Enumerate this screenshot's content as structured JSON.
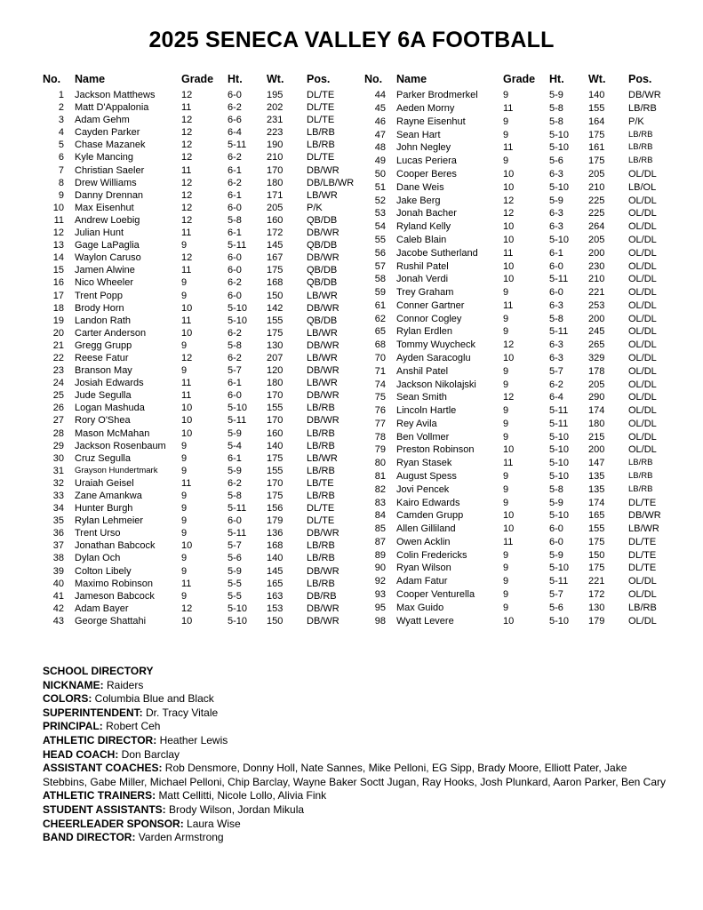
{
  "title": "2025 SENECA VALLEY 6A FOOTBALL",
  "table": {
    "headers": {
      "no": "No.",
      "name": "Name",
      "grade": "Grade",
      "ht": "Ht.",
      "wt": "Wt.",
      "pos": "Pos."
    },
    "left_rows": [
      {
        "no": "1",
        "name": "Jackson Matthews",
        "grade": "12",
        "ht": "6-0",
        "wt": "195",
        "pos": "DL/TE"
      },
      {
        "no": "2",
        "name": "Matt D'Appalonia",
        "grade": "11",
        "ht": "6-2",
        "wt": "202",
        "pos": "DL/TE"
      },
      {
        "no": "3",
        "name": "Adam Gehm",
        "grade": "12",
        "ht": "6-6",
        "wt": "231",
        "pos": "DL/TE"
      },
      {
        "no": "4",
        "name": "Cayden Parker",
        "grade": "12",
        "ht": "6-4",
        "wt": "223",
        "pos": "LB/RB"
      },
      {
        "no": "5",
        "name": "Chase Mazanek",
        "grade": "12",
        "ht": "5-11",
        "wt": "190",
        "pos": "LB/RB"
      },
      {
        "no": "6",
        "name": "Kyle Mancing",
        "grade": "12",
        "ht": "6-2",
        "wt": "210",
        "pos": "DL/TE"
      },
      {
        "no": "7",
        "name": "Christian Saeler",
        "grade": "11",
        "ht": "6-1",
        "wt": "170",
        "pos": "DB/WR"
      },
      {
        "no": "8",
        "name": "Drew Williams",
        "grade": "12",
        "ht": "6-2",
        "wt": "180",
        "pos": "DB/LB/WR"
      },
      {
        "no": "9",
        "name": "Danny Drennan",
        "grade": "12",
        "ht": "6-1",
        "wt": "171",
        "pos": "LB/WR"
      },
      {
        "no": "10",
        "name": "Max Eisenhut",
        "grade": "12",
        "ht": "6-0",
        "wt": "205",
        "pos": "P/K"
      },
      {
        "no": "11",
        "name": "Andrew Loebig",
        "grade": "12",
        "ht": "5-8",
        "wt": "160",
        "pos": "QB/DB"
      },
      {
        "no": "12",
        "name": "Julian Hunt",
        "grade": "11",
        "ht": "6-1",
        "wt": "172",
        "pos": "DB/WR"
      },
      {
        "no": "13",
        "name": "Gage LaPaglia",
        "grade": "9",
        "ht": "5-11",
        "wt": "145",
        "pos": "QB/DB"
      },
      {
        "no": "14",
        "name": "Waylon Caruso",
        "grade": "12",
        "ht": "6-0",
        "wt": "167",
        "pos": "DB/WR"
      },
      {
        "no": "15",
        "name": "Jamen Alwine",
        "grade": "11",
        "ht": "6-0",
        "wt": "175",
        "pos": "QB/DB"
      },
      {
        "no": "16",
        "name": "Nico Wheeler",
        "grade": "9",
        "ht": "6-2",
        "wt": "168",
        "pos": "QB/DB"
      },
      {
        "no": "17",
        "name": "Trent Popp",
        "grade": "9",
        "ht": "6-0",
        "wt": "150",
        "pos": "LB/WR"
      },
      {
        "no": "18",
        "name": "Brody Horn",
        "grade": "10",
        "ht": "5-10",
        "wt": "142",
        "pos": "DB/WR"
      },
      {
        "no": "19",
        "name": "Landon Rath",
        "grade": "11",
        "ht": "5-10",
        "wt": "155",
        "pos": "QB/DB"
      },
      {
        "no": "20",
        "name": "Carter Anderson",
        "grade": "10",
        "ht": "6-2",
        "wt": "175",
        "pos": "LB/WR"
      },
      {
        "no": "21",
        "name": "Gregg Grupp",
        "grade": "9",
        "ht": "5-8",
        "wt": "130",
        "pos": "DB/WR"
      },
      {
        "no": "22",
        "name": "Reese Fatur",
        "grade": "12",
        "ht": "6-2",
        "wt": "207",
        "pos": "LB/WR"
      },
      {
        "no": "23",
        "name": "Branson May",
        "grade": "9",
        "ht": "5-7",
        "wt": "120",
        "pos": "DB/WR"
      },
      {
        "no": "24",
        "name": "Josiah Edwards",
        "grade": "11",
        "ht": "6-1",
        "wt": "180",
        "pos": "LB/WR"
      },
      {
        "no": "25",
        "name": "Jude Segulla",
        "grade": "11",
        "ht": "6-0",
        "wt": "170",
        "pos": "DB/WR"
      },
      {
        "no": "26",
        "name": "Logan Mashuda",
        "grade": "10",
        "ht": "5-10",
        "wt": "155",
        "pos": "LB/RB"
      },
      {
        "no": "27",
        "name": "Rory O'Shea",
        "grade": "10",
        "ht": "5-11",
        "wt": "170",
        "pos": "DB/WR"
      },
      {
        "no": "28",
        "name": "Mason McMahan",
        "grade": "10",
        "ht": "5-9",
        "wt": "160",
        "pos": "LB/RB"
      },
      {
        "no": "29",
        "name": "Jackson Rosenbaum",
        "grade": "9",
        "ht": "5-4",
        "wt": "140",
        "pos": "LB/RB"
      },
      {
        "no": "30",
        "name": "Cruz Segulla",
        "grade": "9",
        "ht": "6-1",
        "wt": "175",
        "pos": "LB/WR"
      },
      {
        "no": "31",
        "name": "Grayson Hundertmark",
        "grade": "9",
        "ht": "5-9",
        "wt": "155",
        "pos": "LB/RB",
        "name_small": true
      },
      {
        "no": "32",
        "name": "Uraiah Geisel",
        "grade": "11",
        "ht": "6-2",
        "wt": "170",
        "pos": "LB/TE"
      },
      {
        "no": "33",
        "name": "Zane Amankwa",
        "grade": "9",
        "ht": "5-8",
        "wt": "175",
        "pos": "LB/RB"
      },
      {
        "no": "34",
        "name": "Hunter Burgh",
        "grade": "9",
        "ht": "5-11",
        "wt": "156",
        "pos": "DL/TE"
      },
      {
        "no": "35",
        "name": "Rylan Lehmeier",
        "grade": "9",
        "ht": "6-0",
        "wt": "179",
        "pos": "DL/TE"
      },
      {
        "no": "36",
        "name": "Trent Urso",
        "grade": "9",
        "ht": "5-11",
        "wt": "136",
        "pos": "DB/WR"
      },
      {
        "no": "37",
        "name": "Jonathan Babcock",
        "grade": "10",
        "ht": "5-7",
        "wt": "168",
        "pos": "LB/RB"
      },
      {
        "no": "38",
        "name": "Dylan Och",
        "grade": "9",
        "ht": "5-6",
        "wt": "140",
        "pos": "LB/RB"
      },
      {
        "no": "39",
        "name": "Colton Libely",
        "grade": "9",
        "ht": "5-9",
        "wt": "145",
        "pos": "DB/WR"
      },
      {
        "no": "40",
        "name": "Maximo Robinson",
        "grade": "11",
        "ht": "5-5",
        "wt": "165",
        "pos": "LB/RB"
      },
      {
        "no": "41",
        "name": "Jameson Babcock",
        "grade": "9",
        "ht": "5-5",
        "wt": "163",
        "pos": "DB/RB"
      },
      {
        "no": "42",
        "name": "Adam Bayer",
        "grade": "12",
        "ht": "5-10",
        "wt": "153",
        "pos": "DB/WR"
      },
      {
        "no": "43",
        "name": "George Shattahi",
        "grade": "10",
        "ht": "5-10",
        "wt": "150",
        "pos": "DB/WR"
      }
    ],
    "right_rows": [
      {
        "no": "44",
        "name": "Parker Brodmerkel",
        "grade": "9",
        "ht": "5-9",
        "wt": "140",
        "pos": "DB/WR"
      },
      {
        "no": "45",
        "name": "Aeden Morny",
        "grade": "11",
        "ht": "5-8",
        "wt": "155",
        "pos": "LB/RB"
      },
      {
        "no": "46",
        "name": "Rayne Eisenhut",
        "grade": "9",
        "ht": "5-8",
        "wt": "164",
        "pos": "P/K"
      },
      {
        "no": "47",
        "name": "Sean Hart",
        "grade": "9",
        "ht": "5-10",
        "wt": "175",
        "pos": "LB/RB",
        "pos_small": true
      },
      {
        "no": "48",
        "name": "John Negley",
        "grade": "11",
        "ht": "5-10",
        "wt": "161",
        "pos": "LB/RB",
        "pos_small": true
      },
      {
        "no": "49",
        "name": "Lucas Periera",
        "grade": "9",
        "ht": "5-6",
        "wt": "175",
        "pos": "LB/RB",
        "pos_small": true
      },
      {
        "no": "50",
        "name": "Cooper Beres",
        "grade": "10",
        "ht": "6-3",
        "wt": "205",
        "pos": "OL/DL"
      },
      {
        "no": "51",
        "name": "Dane Weis",
        "grade": "10",
        "ht": "5-10",
        "wt": "210",
        "pos": "LB/OL"
      },
      {
        "no": "52",
        "name": "Jake Berg",
        "grade": "12",
        "ht": "5-9",
        "wt": "225",
        "pos": "OL/DL"
      },
      {
        "no": "53",
        "name": "Jonah Bacher",
        "grade": "12",
        "ht": "6-3",
        "wt": "225",
        "pos": "OL/DL"
      },
      {
        "no": "54",
        "name": "Ryland Kelly",
        "grade": "10",
        "ht": "6-3",
        "wt": "264",
        "pos": "OL/DL"
      },
      {
        "no": "55",
        "name": "Caleb Blain",
        "grade": "10",
        "ht": "5-10",
        "wt": "205",
        "pos": "OL/DL"
      },
      {
        "no": "56",
        "name": "Jacobe Sutherland",
        "grade": "11",
        "ht": "6-1",
        "wt": "200",
        "pos": "OL/DL"
      },
      {
        "no": "57",
        "name": "Rushil Patel",
        "grade": "10",
        "ht": "6-0",
        "wt": "230",
        "pos": "OL/DL"
      },
      {
        "no": "58",
        "name": "Jonah Verdi",
        "grade": "10",
        "ht": "5-11",
        "wt": "210",
        "pos": "OL/DL"
      },
      {
        "no": "59",
        "name": "Trey Graham",
        "grade": "9",
        "ht": "6-0",
        "wt": "221",
        "pos": "OL/DL"
      },
      {
        "no": "61",
        "name": "Conner Gartner",
        "grade": "11",
        "ht": "6-3",
        "wt": "253",
        "pos": "OL/DL"
      },
      {
        "no": "62",
        "name": "Connor Cogley",
        "grade": "9",
        "ht": "5-8",
        "wt": "200",
        "pos": "OL/DL"
      },
      {
        "no": "65",
        "name": "Rylan Erdlen",
        "grade": "9",
        "ht": "5-11",
        "wt": "245",
        "pos": "OL/DL"
      },
      {
        "no": "68",
        "name": "Tommy Wuycheck",
        "grade": "12",
        "ht": "6-3",
        "wt": "265",
        "pos": "OL/DL"
      },
      {
        "no": "70",
        "name": "Ayden Saracoglu",
        "grade": "10",
        "ht": "6-3",
        "wt": "329",
        "pos": "OL/DL"
      },
      {
        "no": "71",
        "name": "Anshil Patel",
        "grade": "9",
        "ht": "5-7",
        "wt": "178",
        "pos": "OL/DL"
      },
      {
        "no": "74",
        "name": "Jackson Nikolajski",
        "grade": "9",
        "ht": "6-2",
        "wt": "205",
        "pos": "OL/DL"
      },
      {
        "no": "75",
        "name": "Sean Smith",
        "grade": "12",
        "ht": "6-4",
        "wt": "290",
        "pos": "OL/DL"
      },
      {
        "no": "76",
        "name": "Lincoln Hartle",
        "grade": "9",
        "ht": "5-11",
        "wt": "174",
        "pos": "OL/DL"
      },
      {
        "no": "77",
        "name": "Rey Avila",
        "grade": "9",
        "ht": "5-11",
        "wt": "180",
        "pos": "OL/DL"
      },
      {
        "no": "78",
        "name": "Ben Vollmer",
        "grade": "9",
        "ht": "5-10",
        "wt": "215",
        "pos": "OL/DL"
      },
      {
        "no": "79",
        "name": "Preston Robinson",
        "grade": "10",
        "ht": "5-10",
        "wt": "200",
        "pos": "OL/DL"
      },
      {
        "no": "80",
        "name": "Ryan Stasek",
        "grade": "11",
        "ht": "5-10",
        "wt": "147",
        "pos": "LB/RB",
        "pos_small": true
      },
      {
        "no": "81",
        "name": "August Spess",
        "grade": "9",
        "ht": "5-10",
        "wt": "135",
        "pos": "LB/RB",
        "pos_small": true
      },
      {
        "no": "82",
        "name": "Jovi Pencek",
        "grade": "9",
        "ht": "5-8",
        "wt": "135",
        "pos": "LB/RB",
        "pos_small": true
      },
      {
        "no": "83",
        "name": "Kairo Edwards",
        "grade": "9",
        "ht": "5-9",
        "wt": "174",
        "pos": "DL/TE"
      },
      {
        "no": "84",
        "name": "Camden Grupp",
        "grade": "10",
        "ht": "5-10",
        "wt": "165",
        "pos": "DB/WR"
      },
      {
        "no": "85",
        "name": "Allen Gilliland",
        "grade": "10",
        "ht": "6-0",
        "wt": "155",
        "pos": "LB/WR"
      },
      {
        "no": "87",
        "name": "Owen Acklin",
        "grade": "11",
        "ht": "6-0",
        "wt": "175",
        "pos": "DL/TE"
      },
      {
        "no": "89",
        "name": "Colin Fredericks",
        "grade": "9",
        "ht": "5-9",
        "wt": "150",
        "pos": "DL/TE"
      },
      {
        "no": "90",
        "name": "Ryan Wilson",
        "grade": "9",
        "ht": "5-10",
        "wt": "175",
        "pos": "DL/TE"
      },
      {
        "no": "92",
        "name": "Adam Fatur",
        "grade": "9",
        "ht": "5-11",
        "wt": "221",
        "pos": "OL/DL"
      },
      {
        "no": "93",
        "name": "Cooper Venturella",
        "grade": "9",
        "ht": "5-7",
        "wt": "172",
        "pos": "OL/DL"
      },
      {
        "no": "95",
        "name": "Max Guido",
        "grade": "9",
        "ht": "5-6",
        "wt": "130",
        "pos": "LB/RB"
      },
      {
        "no": "98",
        "name": "Wyatt Levere",
        "grade": "10",
        "ht": "5-10",
        "wt": "179",
        "pos": "OL/DL"
      }
    ]
  },
  "directory": {
    "heading": "SCHOOL DIRECTORY",
    "entries": [
      {
        "label": "NICKNAME:",
        "value": "Raiders"
      },
      {
        "label": "COLORS:",
        "value": "Columbia Blue and Black"
      },
      {
        "label": "SUPERINTENDENT:",
        "value": "Dr. Tracy Vitale"
      },
      {
        "label": "PRINCIPAL:",
        "value": "Robert Ceh"
      },
      {
        "label": "ATHLETIC DIRECTOR:",
        "value": "Heather Lewis"
      },
      {
        "label": "HEAD COACH:",
        "value": "Don Barclay"
      },
      {
        "label": "ASSISTANT COACHES:",
        "value": "Rob Densmore, Donny Holl, Nate Sannes, Mike Pelloni, EG Sipp, Brady Moore, Elliott Pater, Jake Stebbins, Gabe Miller, Michael Pelloni, Chip Barclay, Wayne Baker Soctt Jugan, Ray Hooks, Josh Plunkard, Aaron Parker, Ben Cary"
      },
      {
        "label": "ATHLETIC TRAINERS:",
        "value": "Matt Cellitti, Nicole Lollo, Alivia Fink"
      },
      {
        "label": "STUDENT ASSISTANTS:",
        "value": "Brody Wilson, Jordan Mikula"
      },
      {
        "label": "CHEERLEADER SPONSOR:",
        "value": "Laura Wise"
      },
      {
        "label": "BAND DIRECTOR:",
        "value": "Varden Armstrong"
      }
    ]
  }
}
